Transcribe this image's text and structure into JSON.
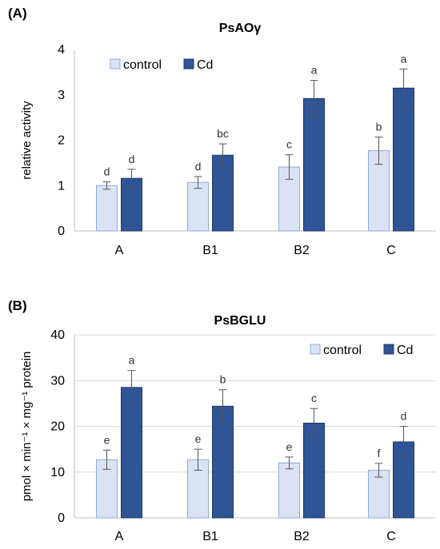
{
  "colors": {
    "control_fill": "#dae3f3",
    "control_stroke": "#8ea9db",
    "cd_fill": "#2f5597",
    "cd_stroke": "#1f3864"
  },
  "chart_data": [
    {
      "type": "bar",
      "panel_label": "(A)",
      "title": "PsAOγ",
      "ylabel": "relative activity",
      "xlabel": "",
      "categories": [
        "A",
        "B1",
        "B2",
        "C"
      ],
      "ylim": [
        0,
        4
      ],
      "yticks": [
        0,
        1,
        2,
        3,
        4
      ],
      "grid": false,
      "legend_position": "top-left",
      "series": [
        {
          "name": "control",
          "color_key": "control",
          "values": [
            1.0,
            1.07,
            1.41,
            1.77
          ],
          "errors": [
            0.08,
            0.13,
            0.27,
            0.3
          ],
          "labels": [
            "d",
            "d",
            "c",
            "b"
          ]
        },
        {
          "name": "Cd",
          "color_key": "cd",
          "values": [
            1.16,
            1.67,
            2.92,
            3.15
          ],
          "errors": [
            0.2,
            0.25,
            0.4,
            0.42
          ],
          "labels": [
            "d",
            "bc",
            "a",
            "a"
          ]
        }
      ]
    },
    {
      "type": "bar",
      "panel_label": "(B)",
      "title": "PsBGLU",
      "ylabel": "pmol × min⁻¹ × mg⁻¹ protein",
      "xlabel": "",
      "categories": [
        "A",
        "B1",
        "B2",
        "C"
      ],
      "ylim": [
        0,
        40
      ],
      "yticks": [
        0,
        10,
        20,
        30,
        40
      ],
      "grid": true,
      "legend_position": "top-right",
      "series": [
        {
          "name": "control",
          "color_key": "control",
          "values": [
            12.7,
            12.7,
            12.0,
            10.4
          ],
          "errors": [
            2.1,
            2.3,
            1.3,
            1.5
          ],
          "labels": [
            "e",
            "e",
            "e",
            "f"
          ]
        },
        {
          "name": "Cd",
          "color_key": "cd",
          "values": [
            28.5,
            24.4,
            20.7,
            16.6
          ],
          "errors": [
            3.7,
            3.6,
            3.2,
            3.4
          ],
          "labels": [
            "a",
            "b",
            "c",
            "d"
          ]
        }
      ]
    }
  ]
}
